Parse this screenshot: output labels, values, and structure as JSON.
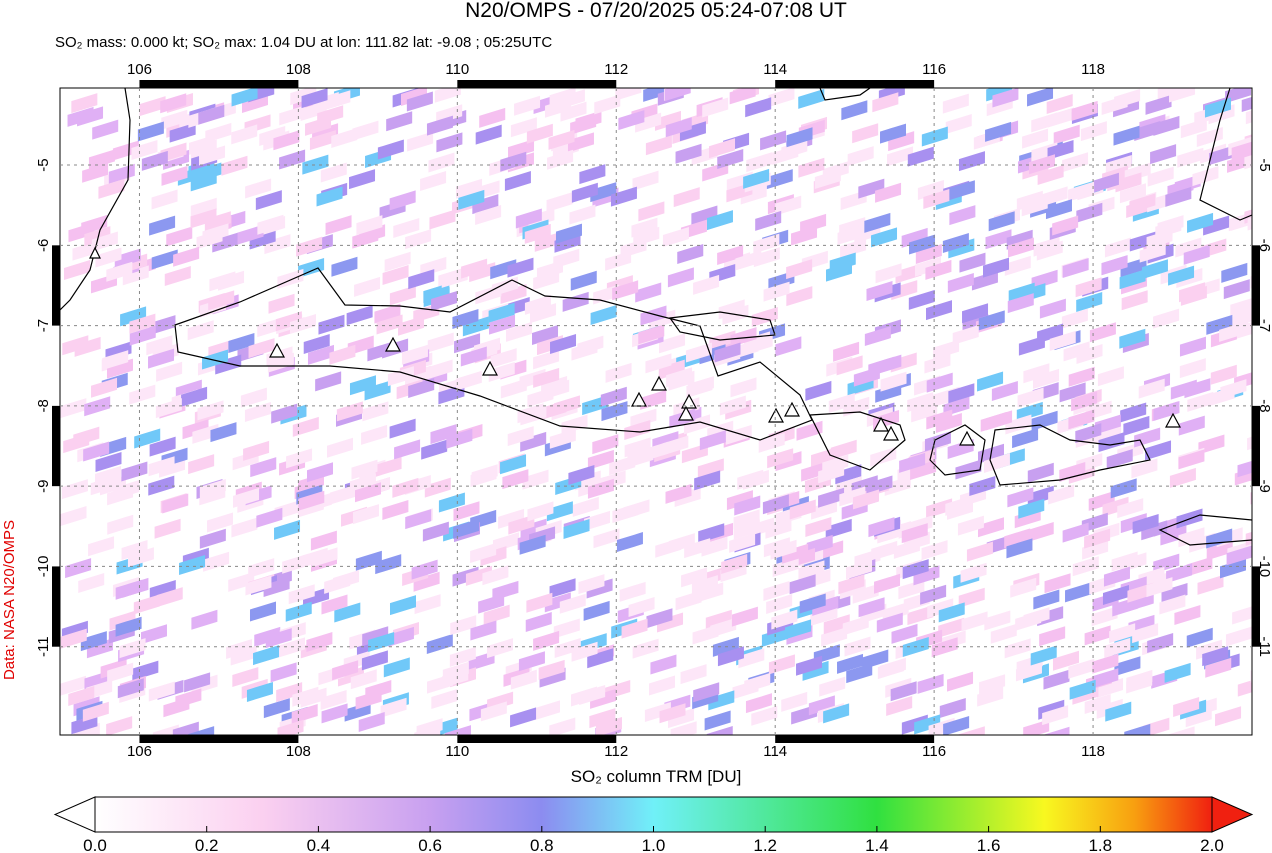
{
  "header": {
    "title": "N20/OMPS - 07/20/2025 05:24-07:08 UT",
    "subtitle": "SO₂ mass: 0.000 kt; SO₂ max: 1.04 DU at lon: 111.82 lat: -9.08 ; 05:25UTC"
  },
  "map": {
    "lonlim": [
      105,
      120
    ],
    "latlim": [
      -4.04,
      -12.1
    ],
    "lon_ticks": [
      106,
      108,
      110,
      112,
      114,
      116,
      118
    ],
    "lat_ticks": [
      -5,
      -6,
      -7,
      -8,
      -9,
      -10,
      -11
    ]
  },
  "colorbar": {
    "label": "SO₂ column TRM [DU]",
    "lim": [
      0,
      2
    ],
    "ticks": [
      {
        "value": 0,
        "label": "0.0"
      },
      {
        "value": 0.2,
        "label": "0.2"
      },
      {
        "value": 0.4,
        "label": "0.4"
      },
      {
        "value": 0.6,
        "label": "0.6"
      },
      {
        "value": 0.8,
        "label": "0.8"
      },
      {
        "value": 1,
        "label": "1.0"
      },
      {
        "value": 1.2,
        "label": "1.2"
      },
      {
        "value": 1.4,
        "label": "1.4"
      },
      {
        "value": 1.6,
        "label": "1.6"
      },
      {
        "value": 1.8,
        "label": "1.8"
      },
      {
        "value": 2,
        "label": "2.0"
      }
    ]
  },
  "credit": "Data: NASA N20/OMPS"
}
